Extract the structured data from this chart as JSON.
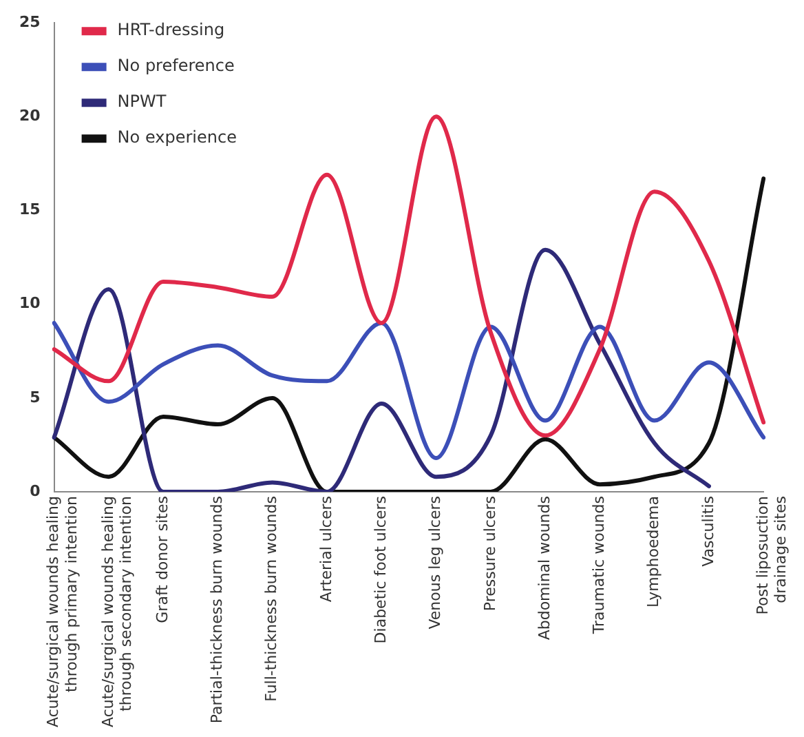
{
  "chart_data": {
    "type": "line",
    "categories": [
      "Acute/surgical wounds healing through primary intention",
      "Acute/surgical wounds healing through secondary intention",
      "Graft donor sites",
      "Partial-thickness burn wounds",
      "Full-thickness burn wounds",
      "Arterial ulcers",
      "Diabetic foot ulcers",
      "Venous leg ulcers",
      "Pressure ulcers",
      "Abdominal wounds",
      "Traumatic wounds",
      "Lymphoedema",
      "Vasculitis",
      "Post liposuction drainage sites"
    ],
    "series": [
      {
        "name": "HRT-dressing",
        "color": "#e0294a",
        "values": [
          7.6,
          5.9,
          11.2,
          10.9,
          10.4,
          16.9,
          9,
          20,
          8.5,
          3,
          7.6,
          16,
          12.3,
          3.7
        ]
      },
      {
        "name": "No preference",
        "color": "#3c4fb8",
        "values": [
          9,
          4.8,
          6.8,
          7.8,
          6.2,
          5.9,
          9,
          1.8,
          8.8,
          3.8,
          8.8,
          3.8,
          6.9,
          2.9
        ]
      },
      {
        "name": "NPWT",
        "color": "#2e2a78",
        "values": [
          2.9,
          10.8,
          0,
          0,
          0.5,
          0,
          4.7,
          0.8,
          3,
          12.9,
          7.9,
          2.6,
          0.3,
          null
        ]
      },
      {
        "name": "No experience",
        "color": "#111111",
        "values": [
          2.9,
          0.8,
          4,
          3.6,
          5,
          0,
          0,
          0,
          0,
          2.8,
          0.4,
          0.8,
          2.6,
          16.7
        ]
      }
    ],
    "ylim": [
      0,
      25
    ],
    "yticks": [
      0,
      5,
      10,
      15,
      20,
      25
    ],
    "grid": false,
    "legend": "top left",
    "marker": "none",
    "line_style": "solid"
  }
}
